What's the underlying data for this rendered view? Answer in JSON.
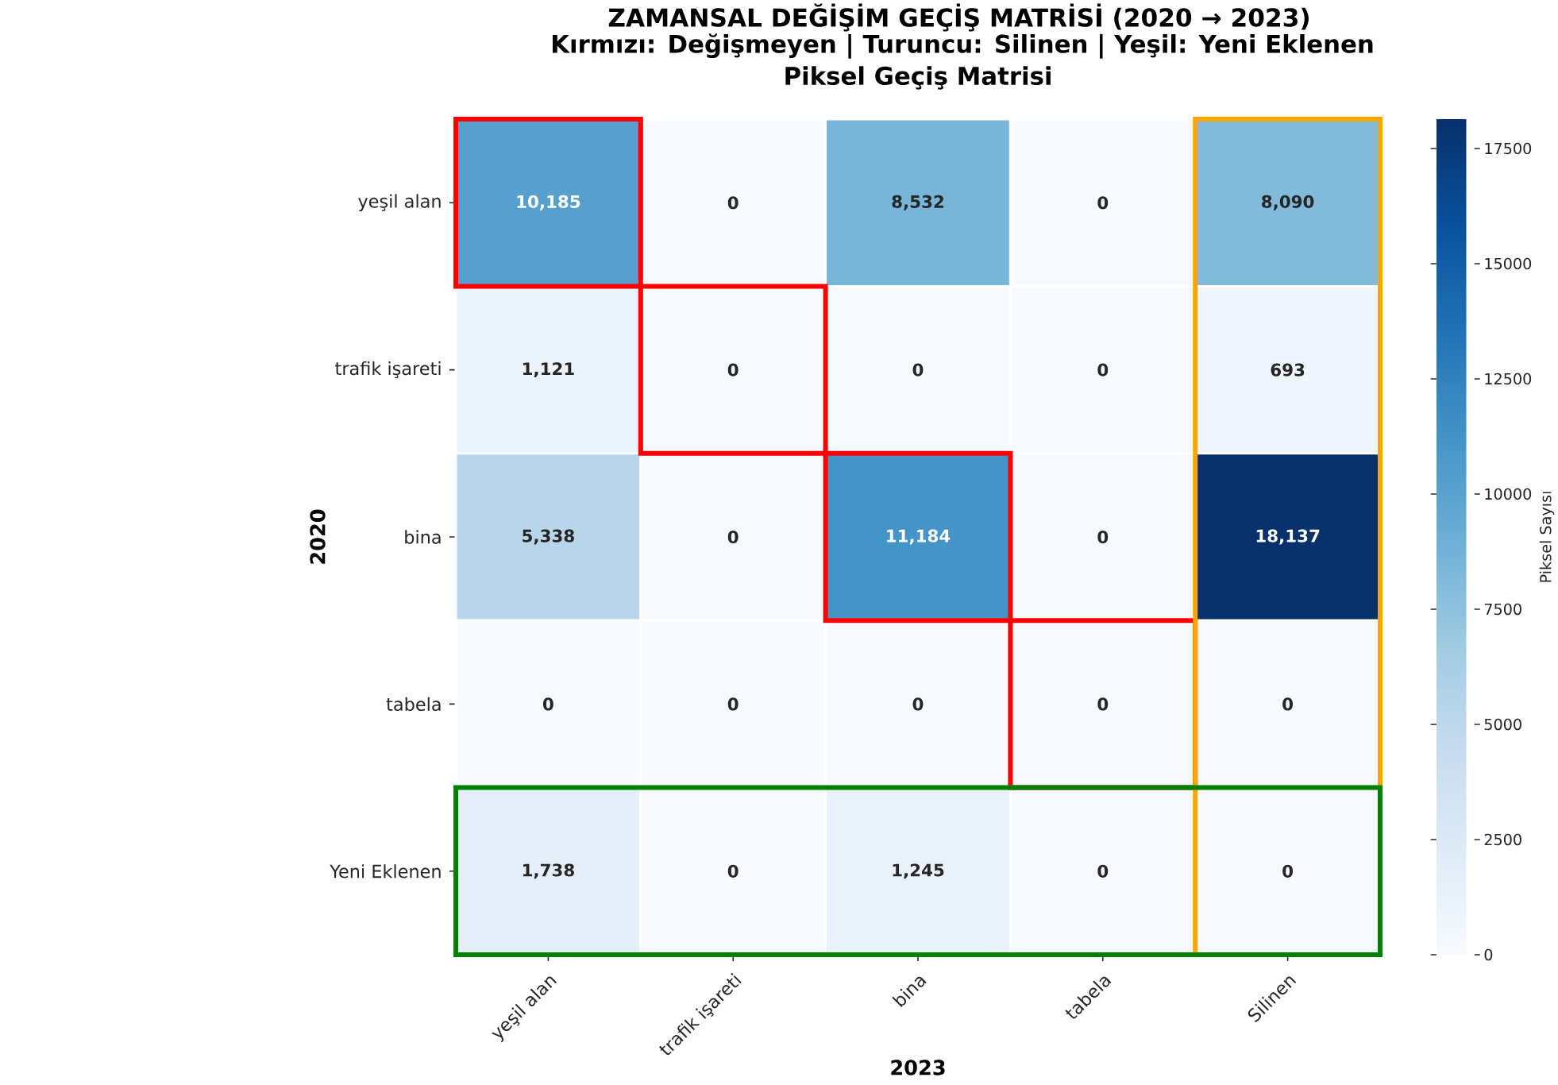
{
  "chart_data": {
    "type": "heatmap",
    "title": "ZAMANSAL DEĞİŞİM GEÇİŞ MATRİSİ (2020 → 2023)",
    "subtitle": "Kırmızı: Değişmeyen | Turuncu: Silinen | Yeşil: Yeni Eklenen",
    "annotations": [
      "Piksel Geçiş Matrisi"
    ],
    "xlabel": "2023",
    "ylabel": "2020",
    "clabel": "Piksel Sayısı",
    "categories": [
      "yeşil alan",
      "trafik işareti",
      "bina",
      "tabela",
      "Silinen"
    ],
    "y_categories": [
      "yeşil alan",
      "trafik işareti",
      "bina",
      "tabela",
      "Yeni Eklenen"
    ],
    "cells": [
      [
        10185,
        0,
        8532,
        0,
        8090
      ],
      [
        1121,
        0,
        0,
        0,
        693
      ],
      [
        5338,
        0,
        11184,
        0,
        18137
      ],
      [
        0,
        0,
        0,
        0,
        0
      ],
      [
        1738,
        0,
        1245,
        0,
        0
      ]
    ],
    "cell_labels": [
      [
        "10,185",
        "0",
        "8,532",
        "0",
        "8,090"
      ],
      [
        "1,121",
        "0",
        "0",
        "0",
        "693"
      ],
      [
        "5,338",
        "0",
        "11,184",
        "0",
        "18,137"
      ],
      [
        "0",
        "0",
        "0",
        "0",
        "0"
      ],
      [
        "1,738",
        "0",
        "1,245",
        "0",
        "0"
      ]
    ],
    "clim": [
      0,
      18137
    ],
    "cticks": [
      0,
      2500,
      5000,
      7500,
      10000,
      12500,
      15000,
      17500
    ]
  }
}
